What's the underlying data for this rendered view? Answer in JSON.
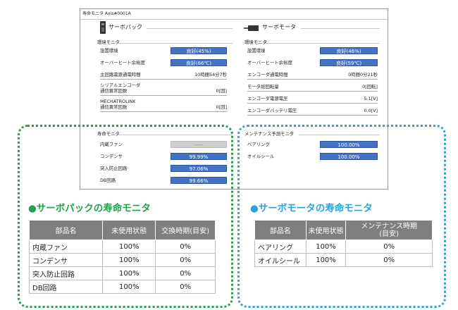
{
  "window": {
    "title": "寿命モニタ Axis#0001A"
  },
  "pack": {
    "header": "サーボパック",
    "env_title": "環境モニタ",
    "install_env": {
      "label": "設置環境",
      "value": "良好(45%)",
      "percent": 45
    },
    "overheat": {
      "label": "オーバーヒート余裕度",
      "value": "良好(66℃)",
      "percent": 66
    },
    "main_power_time": {
      "label": "主回路電源通電時間",
      "value": "10時間54分7秒"
    },
    "serial_encoder": {
      "label": "シリアルエンコーダ",
      "sub": "通信異常回数",
      "value": "0[回]"
    },
    "mechatrolink": {
      "label": "MECHATROLINK",
      "sub": "通信異常回数",
      "value": "0[回]"
    },
    "life_title": "寿命モニタ",
    "life_items": [
      {
        "label": "内蔵ファン",
        "value": "-----",
        "percent": 100,
        "state": "na"
      },
      {
        "label": "コンデンサ",
        "value": "99.99%",
        "percent": 99.99,
        "state": "ok"
      },
      {
        "label": "突入防止回路",
        "value": "97.06%",
        "percent": 97.06,
        "state": "ok"
      },
      {
        "label": "DB回路",
        "value": "99.66%",
        "percent": 99.66,
        "state": "ok"
      }
    ]
  },
  "motor": {
    "header": "サーボモータ",
    "env_title": "環境モニタ",
    "install_env": {
      "label": "設置環境",
      "value": "良好(46%)",
      "percent": 46
    },
    "overheat": {
      "label": "オーバーヒート余裕度",
      "value": "良好(59℃)",
      "percent": 59
    },
    "encoder_time": {
      "label": "エンコーダ通電時間",
      "value": "0時間0分21秒"
    },
    "rotations": {
      "label": "モータ総回転量",
      "value": "0[回転]"
    },
    "encoder_voltage": {
      "label": "エンコーダ電源電圧",
      "value": "5.1[V]"
    },
    "battery_voltage": {
      "label": "エンコーダバッテリ電圧",
      "value": "0.0[V]"
    },
    "maint_title": "メンテナンス予測モニタ",
    "maint_items": [
      {
        "label": "ベアリング",
        "value": "100.00%",
        "percent": 100
      },
      {
        "label": "オイルシール",
        "value": "100.00%",
        "percent": 100
      }
    ]
  },
  "pack_table": {
    "title": "●サーボパックの寿命モニタ",
    "headers": [
      "部品名",
      "未使用状態",
      "交換時期(目安)"
    ],
    "rows": [
      [
        "内蔵ファン",
        "100%",
        "0%"
      ],
      [
        "コンデンサ",
        "100%",
        "0%"
      ],
      [
        "突入防止回路",
        "100%",
        "0%"
      ],
      [
        "DB回路",
        "100%",
        "0%"
      ]
    ]
  },
  "motor_table": {
    "title": "●サーボモータの寿命モニタ",
    "headers": [
      "部品名",
      "未使用状態",
      "メンテナンス時期",
      "(目安)"
    ],
    "rows": [
      [
        "ベアリング",
        "100%",
        "0%"
      ],
      [
        "オイルシール",
        "100%",
        "0%"
      ]
    ]
  },
  "colors": {
    "bar": "#4472c4",
    "green_dots": "#1ea34a",
    "blue_dots": "#2aa3dc",
    "green_title": "#1ea34a",
    "blue_title": "#2aa3dc",
    "table_header": "#7f7f7f"
  }
}
